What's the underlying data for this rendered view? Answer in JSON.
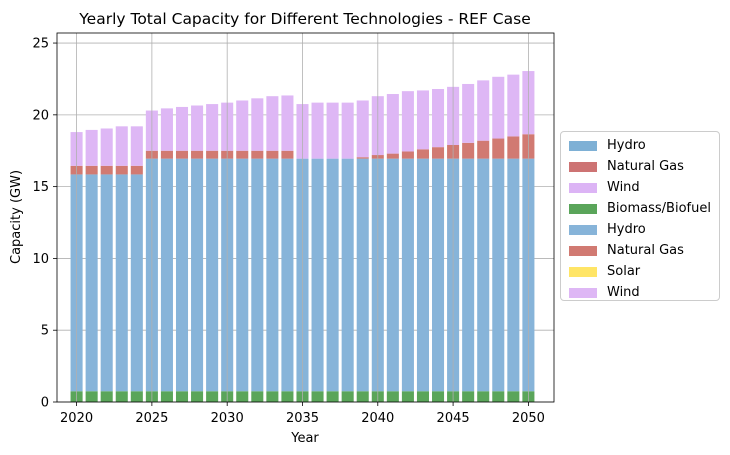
{
  "chart_data": {
    "type": "bar",
    "stacked": true,
    "title": "Yearly Total Capacity for Different Technologies - REF Case",
    "xlabel": "Year",
    "ylabel": "Capacity (GW)",
    "xlim": [
      2018.7,
      2051.7
    ],
    "ylim": [
      0,
      25.7
    ],
    "x_ticks": [
      2020,
      2025,
      2030,
      2035,
      2040,
      2045,
      2050
    ],
    "y_ticks": [
      0,
      5,
      10,
      15,
      20,
      25
    ],
    "grid": true,
    "legend_placement": "center-right outside",
    "categories": [
      2020,
      2021,
      2022,
      2023,
      2024,
      2025,
      2026,
      2027,
      2028,
      2029,
      2030,
      2031,
      2032,
      2033,
      2034,
      2035,
      2036,
      2037,
      2038,
      2039,
      2040,
      2041,
      2042,
      2043,
      2044,
      2045,
      2046,
      2047,
      2048,
      2049,
      2050
    ],
    "series": [
      {
        "name": "Hydro",
        "color": "#7eb0d5",
        "values": [
          0,
          0,
          0,
          0,
          0,
          0,
          0,
          0,
          0,
          0,
          0,
          0,
          0,
          0,
          0,
          0,
          0,
          0,
          0,
          0,
          0,
          0,
          0,
          0,
          0,
          0,
          0,
          0,
          0,
          0,
          0
        ]
      },
      {
        "name": "Natural Gas",
        "color": "#cd7373",
        "values": [
          0,
          0,
          0,
          0,
          0,
          0,
          0,
          0,
          0,
          0,
          0,
          0,
          0,
          0,
          0,
          0,
          0,
          0,
          0,
          0,
          0,
          0,
          0,
          0,
          0,
          0,
          0,
          0,
          0,
          0,
          0
        ]
      },
      {
        "name": "Wind",
        "color": "#dcb4f5",
        "values": [
          0,
          0,
          0,
          0,
          0,
          0,
          0,
          0,
          0,
          0,
          0,
          0,
          0,
          0,
          0,
          0,
          0,
          0,
          0,
          0,
          0,
          0,
          0,
          0,
          0,
          0,
          0,
          0,
          0,
          0,
          0
        ]
      },
      {
        "name": "Biomass/Biofuel",
        "color": "#5aa55a",
        "values": [
          0.75,
          0.75,
          0.75,
          0.75,
          0.75,
          0.75,
          0.75,
          0.75,
          0.75,
          0.75,
          0.75,
          0.75,
          0.75,
          0.75,
          0.75,
          0.75,
          0.75,
          0.75,
          0.75,
          0.75,
          0.75,
          0.75,
          0.75,
          0.75,
          0.75,
          0.75,
          0.75,
          0.75,
          0.75,
          0.75,
          0.75
        ]
      },
      {
        "name": "Hydro",
        "color": "#87b4d9",
        "values": [
          15.1,
          15.1,
          15.1,
          15.1,
          15.1,
          16.2,
          16.2,
          16.2,
          16.2,
          16.2,
          16.2,
          16.2,
          16.2,
          16.2,
          16.2,
          16.2,
          16.2,
          16.2,
          16.2,
          16.2,
          16.2,
          16.2,
          16.2,
          16.2,
          16.2,
          16.2,
          16.2,
          16.2,
          16.2,
          16.2,
          16.2
        ]
      },
      {
        "name": "Natural Gas",
        "color": "#d17a72",
        "values": [
          0.6,
          0.6,
          0.6,
          0.6,
          0.6,
          0.55,
          0.55,
          0.55,
          0.55,
          0.55,
          0.55,
          0.55,
          0.55,
          0.55,
          0.55,
          0,
          0,
          0,
          0,
          0.1,
          0.25,
          0.35,
          0.5,
          0.65,
          0.8,
          0.95,
          1.1,
          1.25,
          1.4,
          1.55,
          1.7
        ]
      },
      {
        "name": "Solar",
        "color": "#ffe566",
        "values": [
          0,
          0,
          0,
          0,
          0,
          0,
          0,
          0,
          0,
          0,
          0,
          0,
          0,
          0,
          0,
          0,
          0,
          0,
          0,
          0,
          0,
          0,
          0,
          0,
          0,
          0,
          0,
          0,
          0,
          0,
          0
        ]
      },
      {
        "name": "Wind",
        "color": "#deb7f5",
        "values": [
          2.35,
          2.5,
          2.6,
          2.75,
          2.75,
          2.8,
          2.95,
          3.05,
          3.15,
          3.25,
          3.35,
          3.5,
          3.65,
          3.8,
          3.85,
          3.8,
          3.9,
          3.9,
          3.9,
          3.95,
          4.1,
          4.15,
          4.2,
          4.1,
          4.05,
          4.05,
          4.1,
          4.2,
          4.3,
          4.3,
          4.4
        ]
      }
    ]
  }
}
